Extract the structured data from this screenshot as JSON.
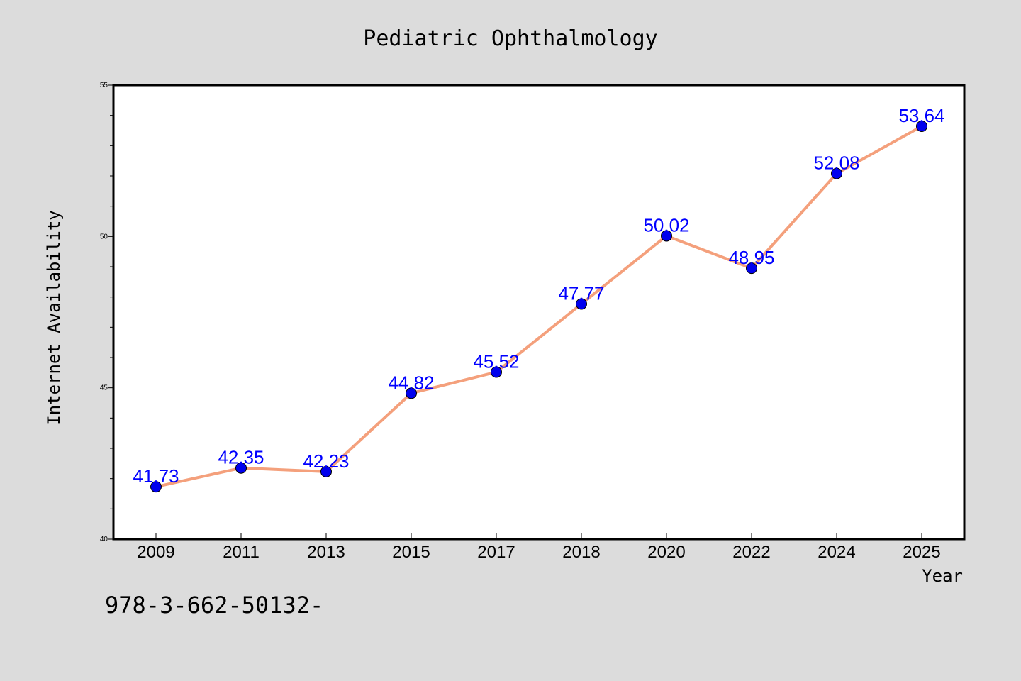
{
  "chart_data": {
    "type": "line",
    "title": "Pediatric Ophthalmology",
    "xlabel": "Year",
    "ylabel": "Internet Availability",
    "categories": [
      "2009",
      "2011",
      "2013",
      "2015",
      "2017",
      "2018",
      "2020",
      "2022",
      "2024",
      "2025"
    ],
    "series": [
      {
        "values": [
          41.73,
          42.35,
          42.23,
          44.82,
          45.52,
          47.77,
          50.02,
          48.95,
          52.08,
          53.64
        ]
      }
    ],
    "data_labels": [
      "41.73",
      "42.35",
      "42.23",
      "44.82",
      "45.52",
      "47.77",
      "50.02",
      "48.95",
      "52.08",
      "53.64"
    ],
    "ylim": [
      40,
      55
    ],
    "yticks": [
      "40",
      "45",
      "50",
      "55"
    ],
    "grid": false,
    "legend": "none",
    "colors": {
      "background": "#dcdcdc",
      "plot_background": "#ffffff",
      "line": "#f4a07c",
      "marker": "#0000ee",
      "label": "#0000ff"
    }
  },
  "footer": {
    "text": "978-3-662-50132-"
  }
}
